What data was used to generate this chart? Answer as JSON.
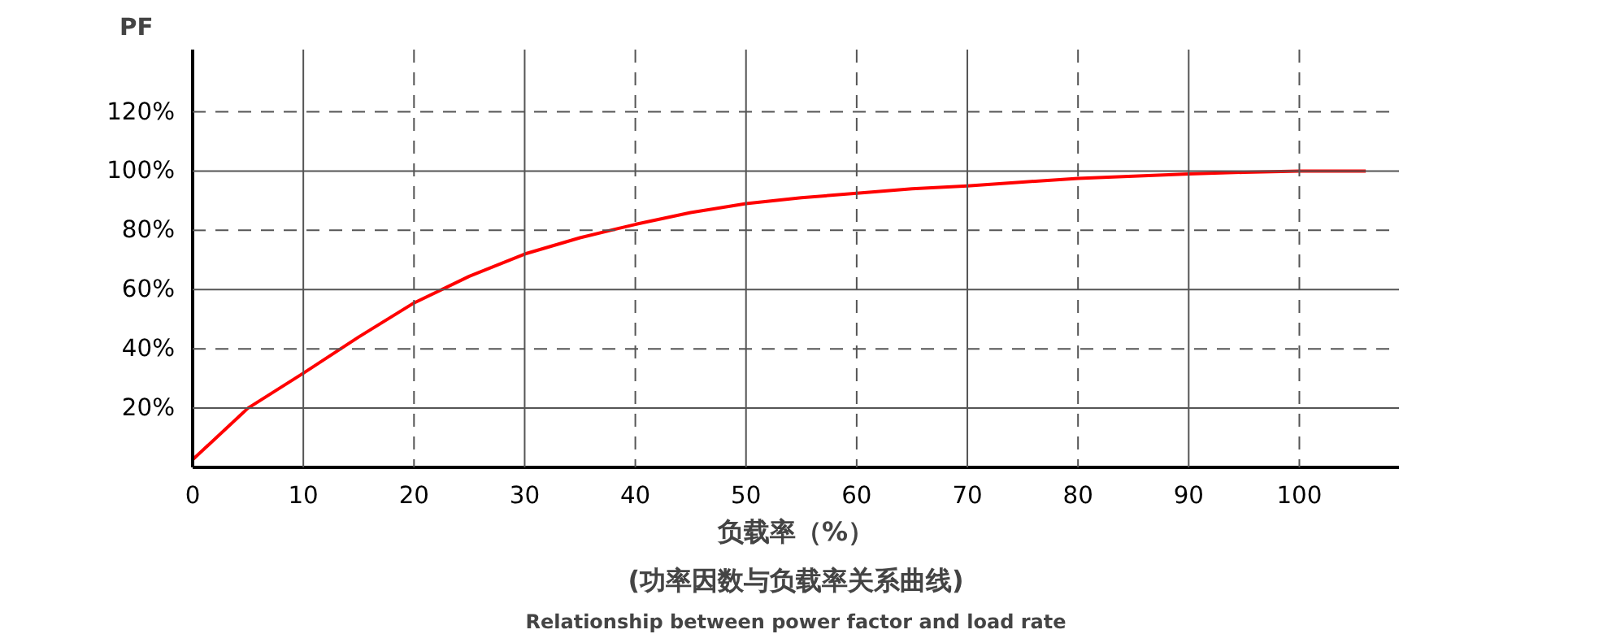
{
  "chart_data": {
    "type": "line",
    "ylabel": "PF",
    "xlabel": "负载率（%）",
    "annotations": [
      "(功率因数与负载率关系曲线)",
      "Relationship between power factor and load rate"
    ],
    "x": [
      0,
      5,
      10,
      15,
      20,
      25,
      30,
      35,
      40,
      45,
      50,
      55,
      60,
      65,
      70,
      75,
      80,
      85,
      90,
      95,
      100,
      106
    ],
    "series": [
      {
        "color": "#ff0000",
        "values": [
          2.6,
          20,
          31.8,
          44,
          55.5,
          64.5,
          72,
          77.5,
          82,
          86,
          89,
          91,
          92.5,
          94,
          95,
          96.3,
          97.5,
          98.3,
          99,
          99.6,
          100,
          100
        ]
      }
    ],
    "xlim": [
      0,
      109
    ],
    "ylim": [
      0,
      141
    ],
    "xticks": [
      0,
      10,
      20,
      30,
      40,
      50,
      60,
      70,
      80,
      90,
      100
    ],
    "yticks": [
      {
        "value": 20,
        "label": "20%"
      },
      {
        "value": 40,
        "label": "40%"
      },
      {
        "value": 60,
        "label": "60%"
      },
      {
        "value": 80,
        "label": "80%"
      },
      {
        "value": 100,
        "label": "100%"
      },
      {
        "value": 120,
        "label": "120%"
      }
    ],
    "grid": true,
    "line_style": "solid"
  }
}
